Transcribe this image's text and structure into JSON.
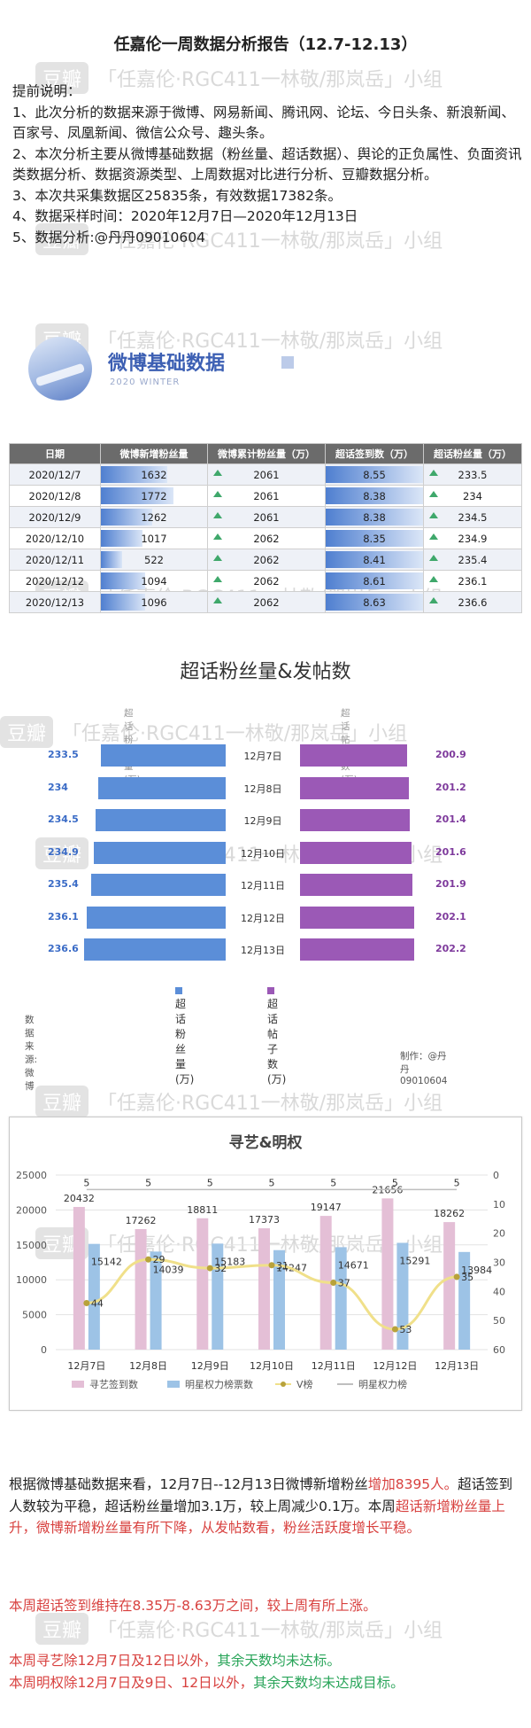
{
  "header": {
    "title": "任嘉伦一周数据分析报告（12.7-12.13）"
  },
  "watermark": {
    "logo_text": "豆瓣",
    "text": "「任嘉伦·RGC411一林敬/那岚岳」小组"
  },
  "notes": {
    "intro": "提前说明：",
    "lines": [
      "1、此次分析的数据来源于微博、网易新闻、腾讯网、论坛、今日头条、新浪新闻、百家号、凤凰新闻、微信公众号、趣头条。",
      "2、本次分析主要从微博基础数据（粉丝量、超话数据）、舆论的正负属性、负面资讯类数据分析、数据资源类型、上周数据对比进行分析、豆瓣数据分析。",
      "3、本次共采集数据区25835条，有效数据17382条。",
      "4、数据采样时间：2020年12月7日—2020年12月13日",
      "5、数据分析:@丹丹09010604"
    ]
  },
  "section": {
    "title": "微博基础数据",
    "subtitle": "2020 WINTER"
  },
  "weibo_table": {
    "headers": [
      "日期",
      "微博新增粉丝量",
      "微博累计粉丝量（万）",
      "超话签到数（万）",
      "超话粉丝量（万）"
    ],
    "rows": [
      [
        "2020/12/7",
        "1632",
        "2061",
        "8.55",
        "233.5"
      ],
      [
        "2020/12/8",
        "1772",
        "2061",
        "8.38",
        "234"
      ],
      [
        "2020/12/9",
        "1262",
        "2061",
        "8.38",
        "234.5"
      ],
      [
        "2020/12/10",
        "1017",
        "2062",
        "8.35",
        "234.9"
      ],
      [
        "2020/12/11",
        "522",
        "2062",
        "8.41",
        "235.4"
      ],
      [
        "2020/12/12",
        "1094",
        "2062",
        "8.61",
        "236.1"
      ],
      [
        "2020/12/13",
        "1096",
        "2062",
        "8.63",
        "236.6"
      ]
    ]
  },
  "chart_data": [
    {
      "type": "bar",
      "title": "超话粉丝量&发帖数",
      "categories": [
        "12月7日",
        "12月8日",
        "12月9日",
        "12月10日",
        "12月11日",
        "12月12日",
        "12月13日"
      ],
      "series": [
        {
          "name": "超话粉丝量(万)",
          "values": [
            233.5,
            234,
            234.5,
            234.9,
            235.4,
            236.1,
            236.6
          ],
          "color": "#5b8ed8"
        },
        {
          "name": "超话帖子数(万)",
          "values": [
            200.9,
            201.2,
            201.4,
            201.6,
            201.9,
            202.1,
            202.2
          ],
          "color": "#9b59b6"
        }
      ],
      "legend": "bottom",
      "source": "数据来源: 微博",
      "credit": "制作：@丹丹09010604"
    },
    {
      "type": "bar",
      "title": "寻艺&明权",
      "categories": [
        "12月7日",
        "12月8日",
        "12月9日",
        "12月10日",
        "12月11日",
        "12月12日",
        "12月13日"
      ],
      "ylim": [
        0,
        25000
      ],
      "y2lim": [
        0,
        60
      ],
      "y_ticks": [
        "0",
        "5000",
        "10000",
        "15000",
        "20000",
        "25000"
      ],
      "y2_ticks": [
        "0",
        "10",
        "20",
        "30",
        "40",
        "50",
        "60"
      ],
      "series": [
        {
          "name": "寻艺签到数",
          "values": [
            20432,
            17262,
            18811,
            17373,
            19147,
            21656,
            18262
          ],
          "color": "#e4bfd6"
        },
        {
          "name": "明星权力榜票数",
          "values": [
            15142,
            14039,
            15183,
            14247,
            14671,
            15291,
            13984
          ],
          "color": "#9dc3e6"
        },
        {
          "name": "V榜",
          "values": [
            44,
            29,
            32,
            31,
            37,
            53,
            35
          ],
          "color": "#f0e08a"
        },
        {
          "name": "明星权力榜",
          "values": [
            5,
            5,
            5,
            5,
            5,
            5,
            5
          ],
          "color": "#bfbfbf"
        }
      ],
      "legend": "bottom"
    }
  ],
  "analysis": {
    "p1_a": "根据微博基础数据来看，12月7日--12月13日微博新增粉丝",
    "p1_b": "增加8395人。",
    "p1_c": "超话签到人数较为平稳，超话粉丝量增加3.1万，较上周减少0.1万。本周",
    "p1_d": "超话新增粉丝量上升，微博新增粉丝量有所下降，从发帖数看，粉丝活跃度增长平稳。",
    "p2": "本周超话签到维持在8.35万-8.63万之间，较上周有所上涨。",
    "p3_a": "本周寻艺除12月7日及12日以外，",
    "p3_b": "其余天数均未达标。",
    "p4_a": "本周明权除12月7日及9日、12日以外，",
    "p4_b": "其余天数均未达成目标。"
  }
}
